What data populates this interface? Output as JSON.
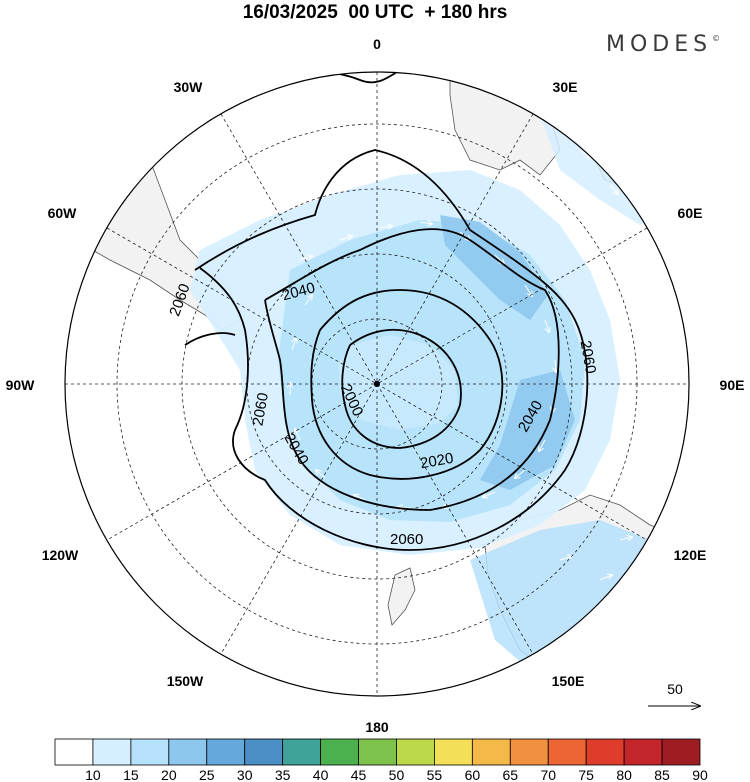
{
  "title": "16/03/2025  00 UTC  + 180 hrs",
  "brand": {
    "name": "MODES",
    "mark": "©"
  },
  "longitude_labels": [
    "0",
    "30E",
    "60E",
    "90E",
    "120E",
    "150E",
    "180",
    "150W",
    "120W",
    "90W",
    "60W",
    "30W"
  ],
  "contour_labels": [
    "2060",
    "2040",
    "2060",
    "2040",
    "2000",
    "2060",
    "2040",
    "2020",
    "2060"
  ],
  "vector_reference": {
    "label": "50"
  },
  "colorbar": {
    "labels": [
      "10",
      "15",
      "20",
      "25",
      "30",
      "35",
      "40",
      "45",
      "50",
      "55",
      "60",
      "65",
      "70",
      "75",
      "80",
      "85",
      "90"
    ],
    "colors": [
      "#ffffff",
      "#d6efff",
      "#b5e1fb",
      "#8ec7ee",
      "#64a9dc",
      "#4b8fc6",
      "#3fa39a",
      "#4db04f",
      "#7cc24c",
      "#bcd94b",
      "#f4df58",
      "#f5b94a",
      "#f1903f",
      "#ec6535",
      "#de3d2c",
      "#c2252a",
      "#9e1c22"
    ]
  }
}
